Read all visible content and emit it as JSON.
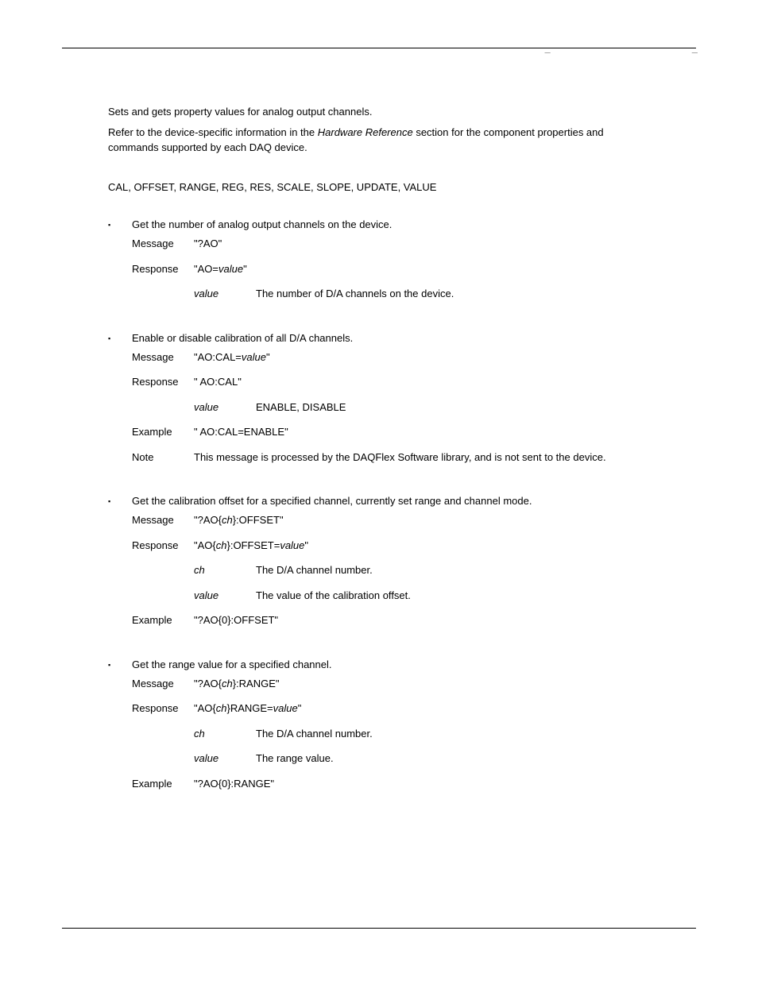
{
  "intro": {
    "p1": "Sets and gets property values for analog output channels.",
    "p2_prefix": "Refer to the device-specific information in the ",
    "p2_em": "Hardware Reference",
    "p2_suffix": " section for the component properties and commands supported by each DAQ device."
  },
  "properties_line": "CAL, OFFSET, RANGE, REG, RES, SCALE, SLOPE, UPDATE, VALUE",
  "labels": {
    "message": "Message",
    "response": "Response",
    "example": "Example",
    "note": "Note",
    "value": "value",
    "ch": "ch"
  },
  "sections": [
    {
      "desc": "Get the number of analog output channels on the device.",
      "message": "\"?AO\"",
      "response_prefix": "\"AO=",
      "response_em": "value",
      "response_suffix": "\"",
      "subs": [
        {
          "label": "value",
          "text": "The number of D/A channels on the device."
        }
      ]
    },
    {
      "desc": "Enable or disable calibration of all D/A channels.",
      "message_prefix": "\"AO:CAL=",
      "message_em": "value",
      "message_suffix": "\"",
      "response": "\" AO:CAL\"",
      "subs": [
        {
          "label": "value",
          "text": "ENABLE, DISABLE"
        }
      ],
      "example": "\" AO:CAL=ENABLE\"",
      "note": "This message is processed by the DAQFlex Software library, and is not sent to the device."
    },
    {
      "desc": "Get the calibration offset for a specified channel, currently set range and channel mode.",
      "message_prefix": "\"?AO{",
      "message_em": "ch",
      "message_suffix": "}:OFFSET\"",
      "response_prefix": "\"AO{",
      "response_em1": "ch",
      "response_mid": "}:OFFSET=",
      "response_em2": "value",
      "response_suffix": "\"",
      "subs": [
        {
          "label": "ch",
          "text": "The D/A channel number."
        },
        {
          "label": "value",
          "text": "The value of the calibration offset."
        }
      ],
      "example": "\"?AO{0}:OFFSET\""
    },
    {
      "desc": "Get the range value for a specified channel.",
      "message_prefix": "\"?AO{",
      "message_em": "ch",
      "message_suffix": "}:RANGE\"",
      "response_prefix": "\"AO{",
      "response_em1": "ch",
      "response_mid": "}RANGE=",
      "response_em2": "value",
      "response_suffix": "\"",
      "subs": [
        {
          "label": "ch",
          "text": "The D/A channel number."
        },
        {
          "label": "value",
          "text": "The range value."
        }
      ],
      "example": "\"?AO{0}:RANGE\""
    }
  ]
}
